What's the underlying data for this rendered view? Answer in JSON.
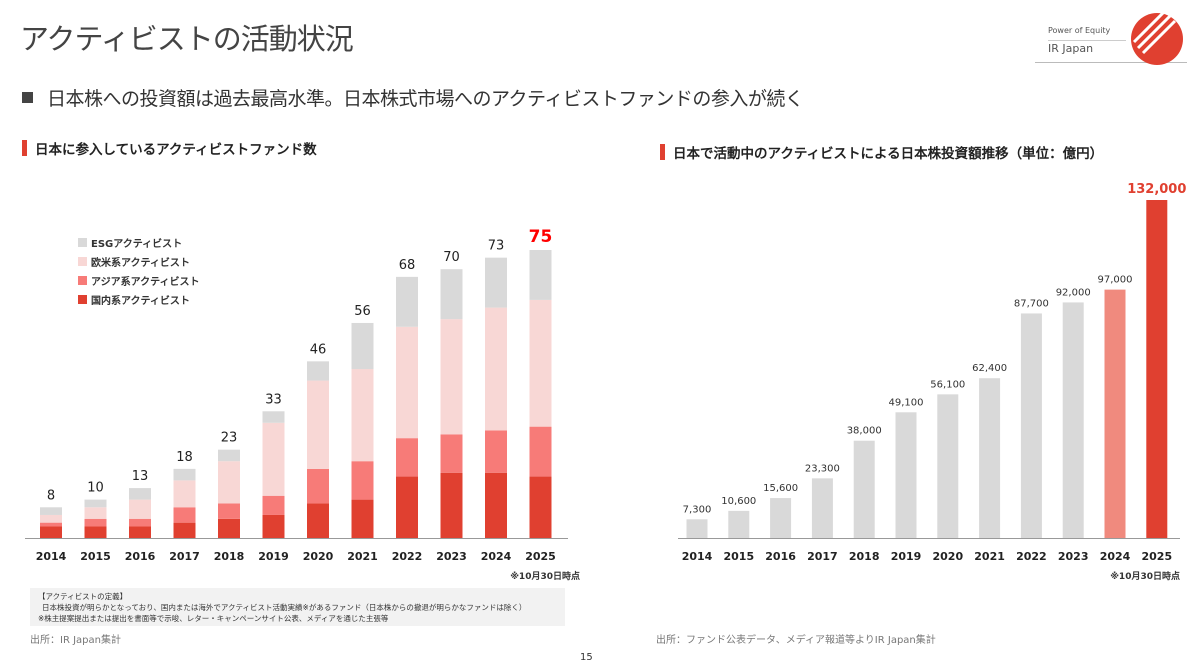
{
  "header": {
    "title": "アクティビストの活動状況",
    "logo_tagline": "Power of Equity",
    "logo_name": "IR Japan"
  },
  "subtitle": "日本株への投資額は過去最高水準。日本株式市場へのアクティビストファンドの参入が続く",
  "chart_data": [
    {
      "type": "bar",
      "stacked": true,
      "title": "日本に参入しているアクティビストファンド数",
      "categories": [
        "2014",
        "2015",
        "2016",
        "2017",
        "2018",
        "2019",
        "2020",
        "2021",
        "2022",
        "2023",
        "2024",
        "2025"
      ],
      "series": [
        {
          "name": "国内系アクティビスト",
          "color": "#e04030",
          "values": [
            3,
            3,
            3,
            4,
            5,
            6,
            9,
            10,
            16,
            17,
            17,
            16
          ]
        },
        {
          "name": "アジア系アクティビスト",
          "color": "#f77b78",
          "values": [
            1,
            2,
            2,
            4,
            4,
            5,
            9,
            10,
            10,
            10,
            11,
            13
          ]
        },
        {
          "name": "欧米系アクティビスト",
          "color": "#f8d7d5",
          "values": [
            2,
            3,
            5,
            7,
            11,
            19,
            23,
            24,
            29,
            30,
            32,
            33
          ]
        },
        {
          "name": "ESG アクティビスト",
          "color": "#d9d9d9",
          "values": [
            2,
            2,
            3,
            3,
            3,
            3,
            5,
            12,
            13,
            13,
            13,
            13
          ]
        }
      ],
      "totals": [
        "8",
        "10",
        "13",
        "18",
        "23",
        "33",
        "46",
        "56",
        "68",
        "70",
        "73",
        "75"
      ],
      "highlight_total_color": "#ff0000",
      "legend_order": [
        "ESGアクティビスト",
        "欧米系アクティビスト",
        "アジア系アクティビスト",
        "国内系アクティビスト"
      ],
      "legend_placement": "top-left",
      "note": "※10月30日時点",
      "ylim": [
        0,
        75
      ]
    },
    {
      "type": "bar",
      "title": "日本で活動中のアクティビストによる日本株投資額推移（単位：億円）",
      "categories": [
        "2014",
        "2015",
        "2016",
        "2017",
        "2018",
        "2019",
        "2020",
        "2021",
        "2022",
        "2023",
        "2024",
        "2025"
      ],
      "values": [
        7300,
        10600,
        15600,
        23300,
        38000,
        49100,
        56100,
        62400,
        87700,
        92000,
        97000,
        132000
      ],
      "labels": [
        "7,300",
        "10,600",
        "15,600",
        "23,300",
        "38,000",
        "49,100",
        "56,100",
        "62,400",
        "87,700",
        "92,000",
        "97,000",
        "132,000"
      ],
      "colors": [
        "#d9d9d9",
        "#d9d9d9",
        "#d9d9d9",
        "#d9d9d9",
        "#d9d9d9",
        "#d9d9d9",
        "#d9d9d9",
        "#d9d9d9",
        "#d9d9d9",
        "#d9d9d9",
        "#f08a7e",
        "#e04030"
      ],
      "note": "※10月30日時点",
      "ylim": [
        0,
        132000
      ]
    }
  ],
  "definition": {
    "heading": "【アクティビストの定義】",
    "line1": "日本株投資が明らかとなっており、国内または海外でアクティビスト活動実績※があるファンド（日本株からの撤退が明らかなファンドは除く）",
    "line2": "※株主提案提出または提出を書面等で示唆、レター・キャンペーンサイト公表、メディアを通じた主張等"
  },
  "sources": {
    "left": "出所：IR Japan集計",
    "right": "出所：ファンド公表データ、メディア報道等よりIR Japan集計"
  },
  "page_number": "15"
}
